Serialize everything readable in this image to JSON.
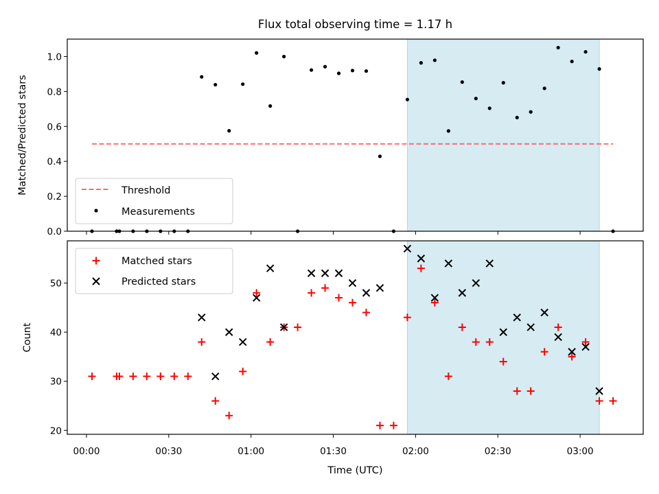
{
  "chart_data": [
    {
      "type": "scatter",
      "panel": "top",
      "title": "Flux total observing time = 1.17 h",
      "ylabel": "Matched/Predicted stars",
      "ylim": [
        0,
        1.1
      ],
      "yticks": [
        "0.0",
        "0.2",
        "0.4",
        "0.6",
        "0.8",
        "1.0"
      ],
      "grid": false,
      "legend_position": "lower-left",
      "highlight_span_minutes": [
        117,
        187
      ],
      "highlight_color": "#add8e6",
      "threshold": {
        "name": "Threshold",
        "value": 0.5,
        "x_range_minutes": [
          2,
          192
        ],
        "color": "#ff6b6b"
      },
      "series": [
        {
          "name": "Measurements",
          "color": "#000000",
          "points": [
            [
              2,
              0.0
            ],
            [
              11,
              0.0
            ],
            [
              12,
              0.0
            ],
            [
              17,
              0.0
            ],
            [
              22,
              0.0
            ],
            [
              27,
              0.0
            ],
            [
              32,
              0.0
            ],
            [
              37,
              0.0
            ],
            [
              42,
              0.884
            ],
            [
              47,
              0.839
            ],
            [
              52,
              0.575
            ],
            [
              57,
              0.842
            ],
            [
              62,
              1.021
            ],
            [
              67,
              0.717
            ],
            [
              72,
              1.0
            ],
            [
              77,
              0.0
            ],
            [
              82,
              0.923
            ],
            [
              87,
              0.942
            ],
            [
              92,
              0.904
            ],
            [
              97,
              0.92
            ],
            [
              102,
              0.917
            ],
            [
              107,
              0.429
            ],
            [
              112,
              0.0
            ],
            [
              117,
              0.754
            ],
            [
              122,
              0.964
            ],
            [
              127,
              0.979
            ],
            [
              132,
              0.574
            ],
            [
              137,
              0.854
            ],
            [
              142,
              0.76
            ],
            [
              147,
              0.704
            ],
            [
              152,
              0.85
            ],
            [
              157,
              0.651
            ],
            [
              162,
              0.683
            ],
            [
              167,
              0.818
            ],
            [
              172,
              1.051
            ],
            [
              177,
              0.972
            ],
            [
              182,
              1.027
            ],
            [
              187,
              0.929
            ],
            [
              192,
              0.0
            ]
          ]
        }
      ]
    },
    {
      "type": "scatter",
      "panel": "bottom",
      "xlabel": "Time (UTC)",
      "ylabel": "Count",
      "ylim": [
        19.2,
        58.6
      ],
      "yticks": [
        20,
        30,
        40,
        50
      ],
      "xlim_minutes": [
        -7,
        203
      ],
      "xticks_minutes": [
        0,
        30,
        60,
        90,
        120,
        150,
        180
      ],
      "xtick_labels": [
        "00:00",
        "00:30",
        "01:00",
        "01:30",
        "02:00",
        "02:30",
        "03:00"
      ],
      "grid": false,
      "legend_position": "upper-left",
      "highlight_span_minutes": [
        117,
        187
      ],
      "highlight_color": "#add8e6",
      "series": [
        {
          "name": "Matched stars",
          "marker": "+",
          "color": "#ff0000",
          "points": [
            [
              2,
              31
            ],
            [
              11,
              31
            ],
            [
              12,
              31
            ],
            [
              17,
              31
            ],
            [
              22,
              31
            ],
            [
              27,
              31
            ],
            [
              32,
              31
            ],
            [
              37,
              31
            ],
            [
              42,
              38
            ],
            [
              47,
              26
            ],
            [
              52,
              23
            ],
            [
              57,
              32
            ],
            [
              62,
              48
            ],
            [
              67,
              38
            ],
            [
              72,
              41
            ],
            [
              77,
              41
            ],
            [
              82,
              48
            ],
            [
              87,
              49
            ],
            [
              92,
              47
            ],
            [
              97,
              46
            ],
            [
              102,
              44
            ],
            [
              107,
              21
            ],
            [
              112,
              21
            ],
            [
              117,
              43
            ],
            [
              122,
              53
            ],
            [
              127,
              46
            ],
            [
              132,
              31
            ],
            [
              137,
              41
            ],
            [
              142,
              38
            ],
            [
              147,
              38
            ],
            [
              152,
              34
            ],
            [
              157,
              28
            ],
            [
              162,
              28
            ],
            [
              167,
              36
            ],
            [
              172,
              41
            ],
            [
              177,
              35
            ],
            [
              182,
              38
            ],
            [
              187,
              26
            ],
            [
              192,
              26
            ]
          ]
        },
        {
          "name": "Predicted stars",
          "marker": "x",
          "color": "#000000",
          "points": [
            [
              42,
              43
            ],
            [
              47,
              31
            ],
            [
              52,
              40
            ],
            [
              57,
              38
            ],
            [
              62,
              47
            ],
            [
              67,
              53
            ],
            [
              72,
              41
            ],
            [
              82,
              52
            ],
            [
              87,
              52
            ],
            [
              92,
              52
            ],
            [
              97,
              50
            ],
            [
              102,
              48
            ],
            [
              107,
              49
            ],
            [
              117,
              57
            ],
            [
              122,
              55
            ],
            [
              127,
              47
            ],
            [
              132,
              54
            ],
            [
              137,
              48
            ],
            [
              142,
              50
            ],
            [
              147,
              54
            ],
            [
              152,
              40
            ],
            [
              157,
              43
            ],
            [
              162,
              41
            ],
            [
              167,
              44
            ],
            [
              172,
              39
            ],
            [
              177,
              36
            ],
            [
              182,
              37
            ],
            [
              187,
              28
            ]
          ]
        }
      ]
    }
  ]
}
